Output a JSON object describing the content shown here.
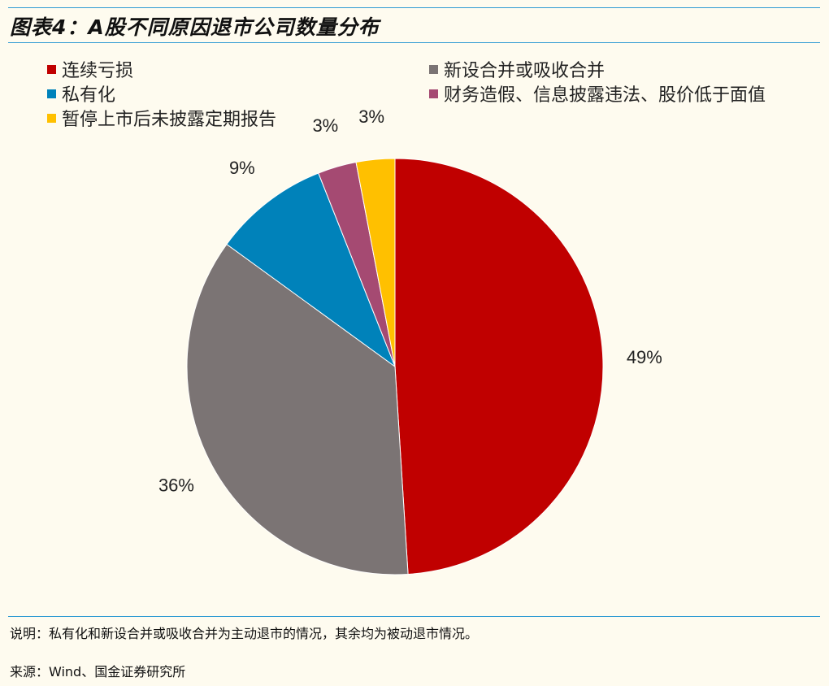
{
  "title": "图表4：A股不同原因退市公司数量分布",
  "chart_data": {
    "type": "pie",
    "slices": [
      {
        "name": "连续亏损",
        "value": 49,
        "label": "49%",
        "color": "#C00000"
      },
      {
        "name": "新设合并或吸收合并",
        "value": 36,
        "label": "36%",
        "color": "#7B7474"
      },
      {
        "name": "私有化",
        "value": 9,
        "label": "9%",
        "color": "#0082BA"
      },
      {
        "name": "财务造假、信息披露违法、股价低于面值",
        "value": 3,
        "label": "3%",
        "color": "#A54A72"
      },
      {
        "name": "暂停上市后未披露定期报告",
        "value": 3,
        "label": "3%",
        "color": "#FFC000"
      }
    ],
    "legend_placement": "top",
    "start_angle": "12 o'clock",
    "direction": "clockwise"
  },
  "footer": {
    "note": "说明：私有化和新设合并或吸收合并为主动退市的情况，其余均为被动退市情况。",
    "source": "来源：Wind、国金证券研究所"
  },
  "colors": {
    "rule": "#2F9BD3",
    "background": "#FEFBEF"
  }
}
